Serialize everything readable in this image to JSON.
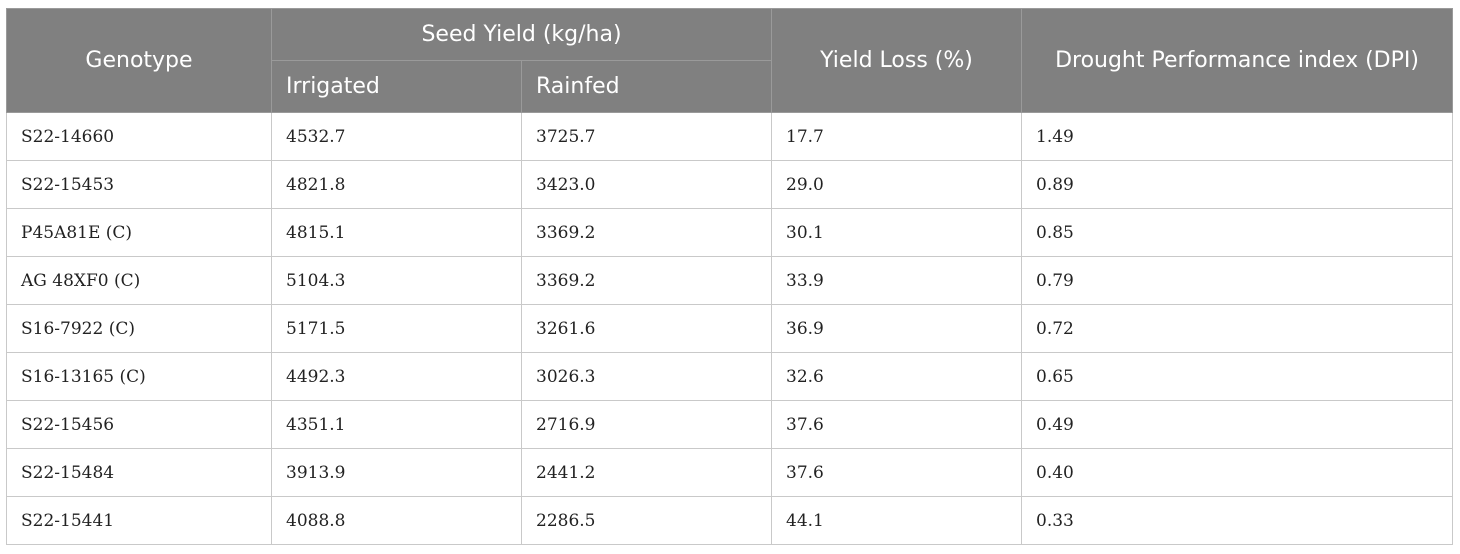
{
  "table": {
    "headers": {
      "genotype": "Genotype",
      "seed_yield": "Seed Yield (kg/ha)",
      "irrigated": "Irrigated",
      "rainfed": "Rainfed",
      "yield_loss": "Yield Loss (%)",
      "dpi": "Drought Performance index (DPI)"
    },
    "rows": [
      {
        "genotype": "S22-14660",
        "irrigated": "4532.7",
        "rainfed": "3725.7",
        "yield_loss": "17.7",
        "dpi": "1.49"
      },
      {
        "genotype": "S22-15453",
        "irrigated": "4821.8",
        "rainfed": "3423.0",
        "yield_loss": "29.0",
        "dpi": "0.89"
      },
      {
        "genotype": "P45A81E (C)",
        "irrigated": "4815.1",
        "rainfed": "3369.2",
        "yield_loss": "30.1",
        "dpi": "0.85"
      },
      {
        "genotype": "AG 48XF0 (C)",
        "irrigated": "5104.3",
        "rainfed": "3369.2",
        "yield_loss": "33.9",
        "dpi": "0.79"
      },
      {
        "genotype": "S16-7922 (C)",
        "irrigated": "5171.5",
        "rainfed": "3261.6",
        "yield_loss": "36.9",
        "dpi": "0.72"
      },
      {
        "genotype": "S16-13165 (C)",
        "irrigated": "4492.3",
        "rainfed": "3026.3",
        "yield_loss": "32.6",
        "dpi": "0.65"
      },
      {
        "genotype": "S22-15456",
        "irrigated": "4351.1",
        "rainfed": "2716.9",
        "yield_loss": "37.6",
        "dpi": "0.49"
      },
      {
        "genotype": "S22-15484",
        "irrigated": "3913.9",
        "rainfed": "2441.2",
        "yield_loss": "37.6",
        "dpi": "0.40"
      },
      {
        "genotype": "S22-15441",
        "irrigated": "4088.8",
        "rainfed": "2286.5",
        "yield_loss": "44.1",
        "dpi": "0.33"
      }
    ]
  }
}
